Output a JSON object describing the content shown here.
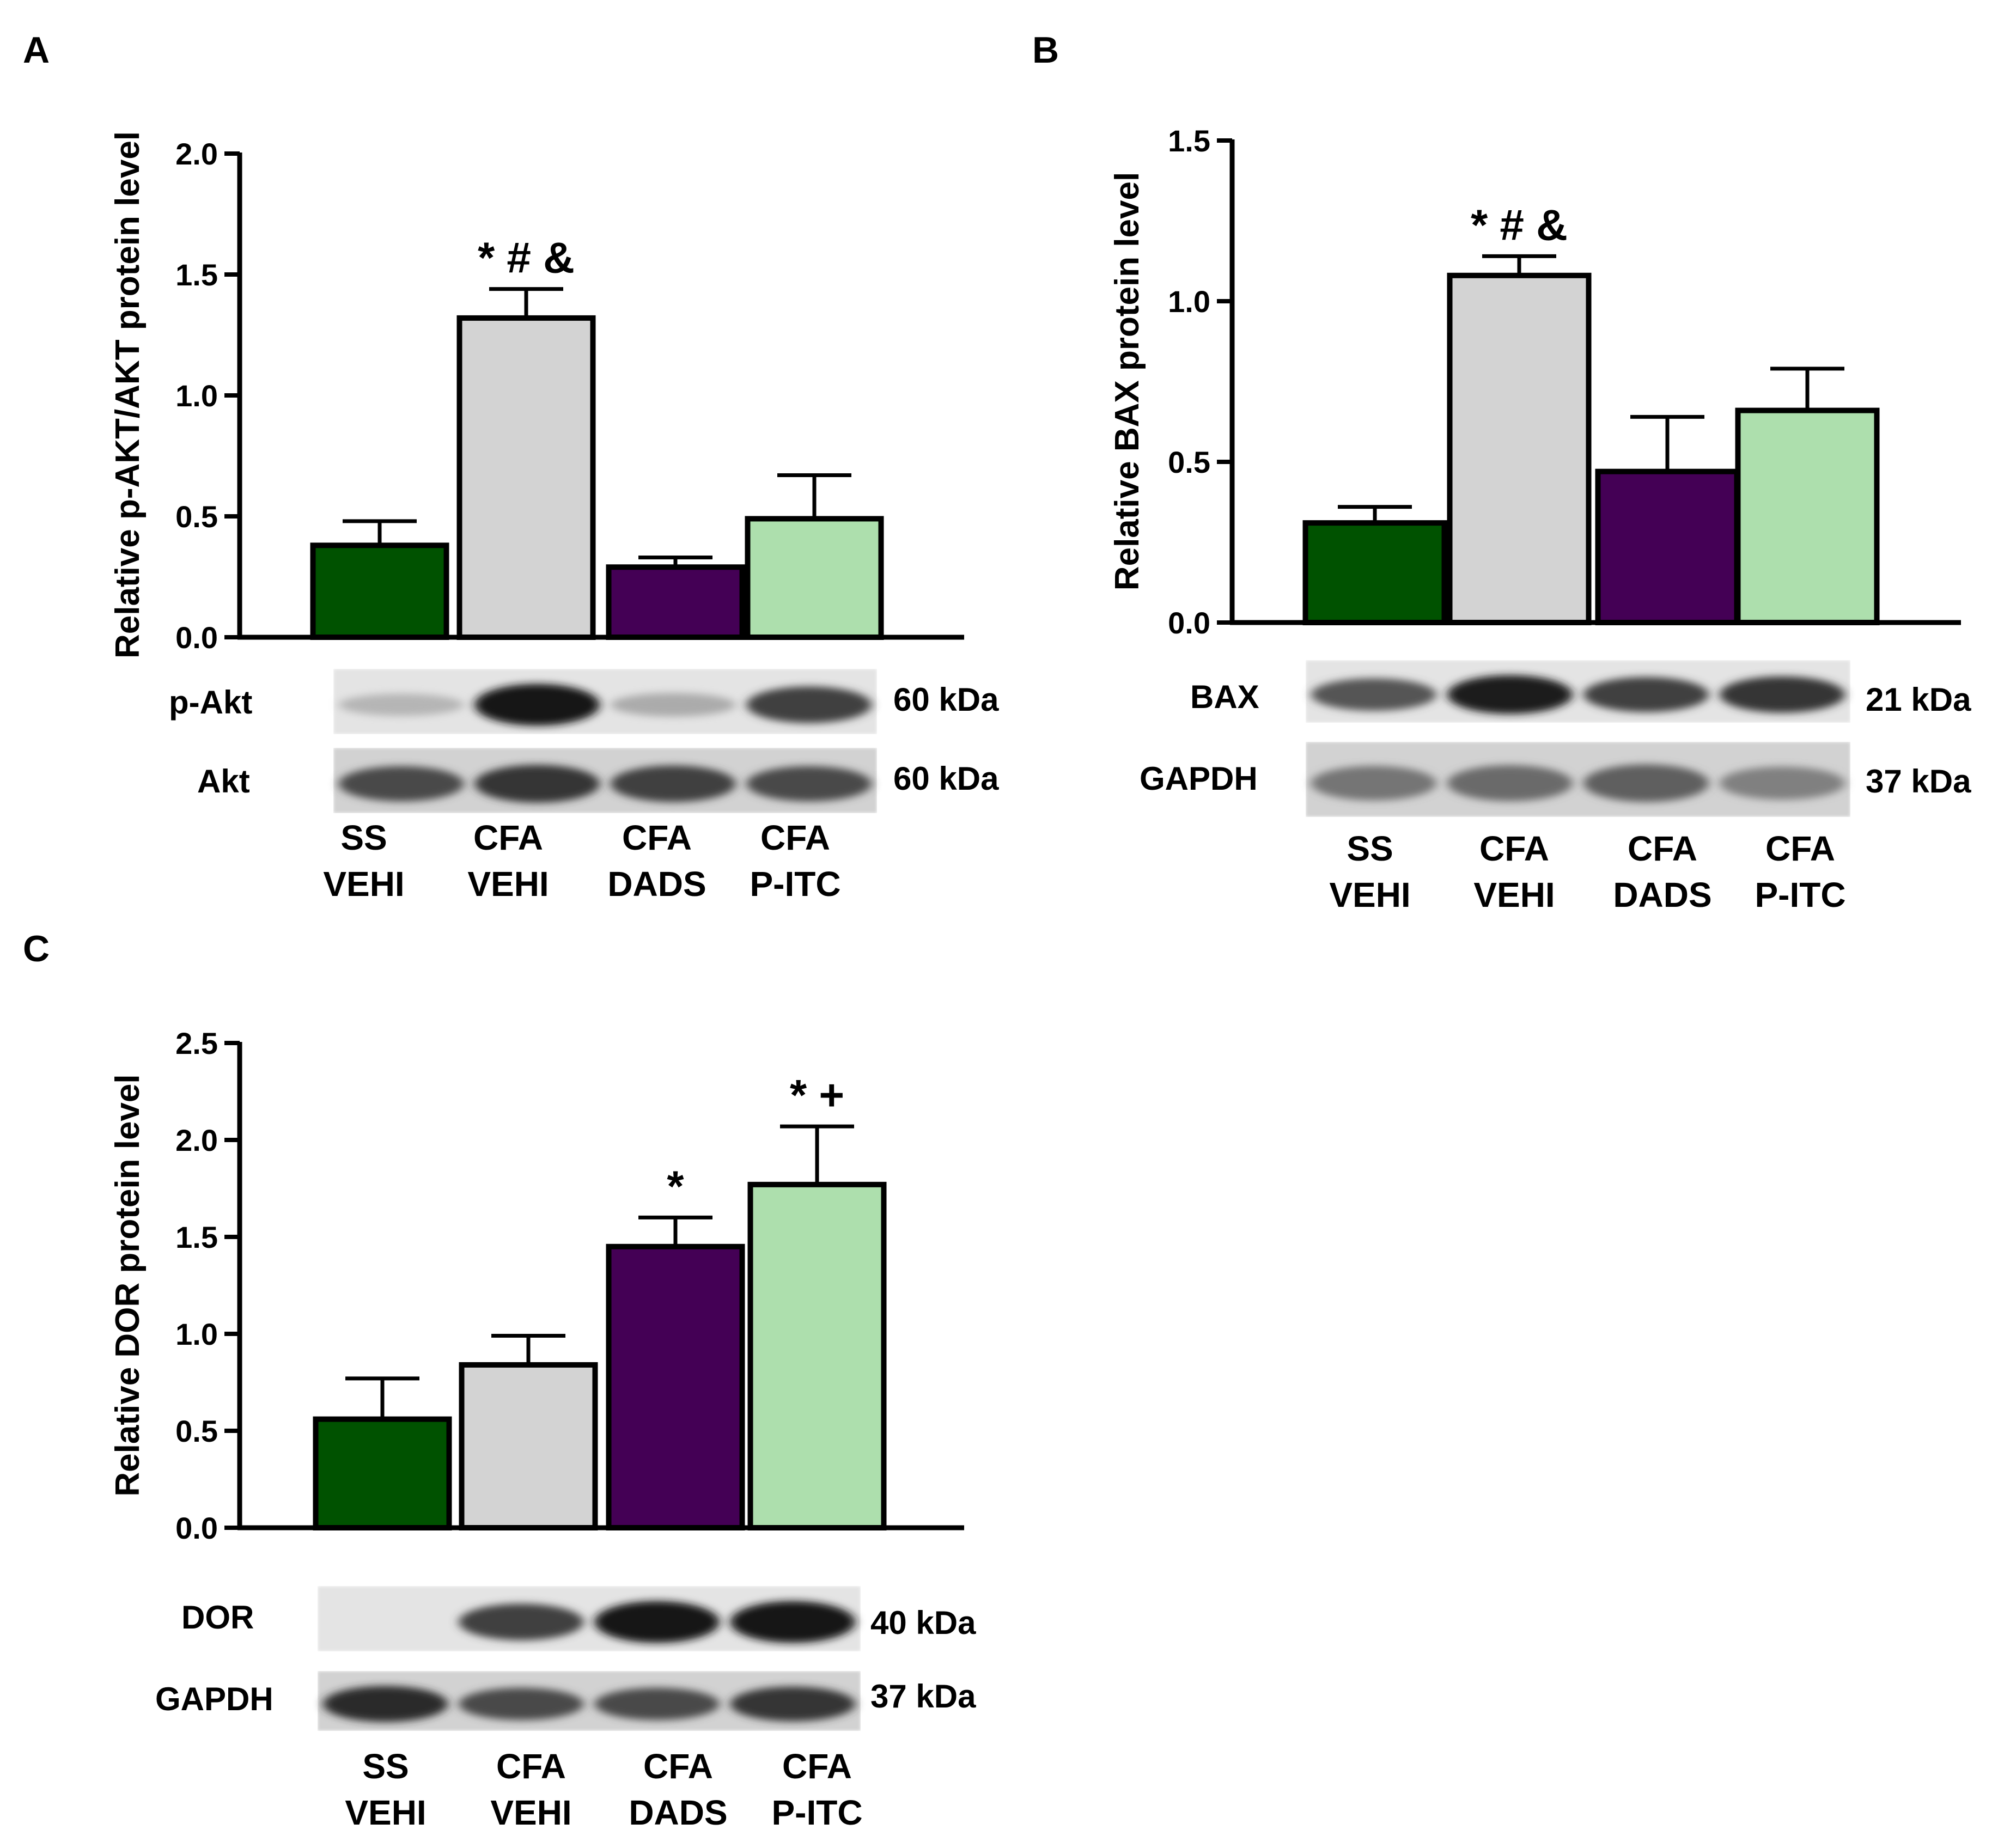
{
  "figure": {
    "panel_letters": [
      "A",
      "B",
      "C"
    ],
    "groups": [
      {
        "line1": "SS",
        "line2": "VEHI"
      },
      {
        "line1": "CFA",
        "line2": "VEHI"
      },
      {
        "line1": "CFA",
        "line2": "DADS"
      },
      {
        "line1": "CFA",
        "line2": "P-ITC"
      }
    ],
    "colors": [
      "#005200",
      "#d3d3d3",
      "#440055",
      "#addfad"
    ]
  },
  "chart_data": [
    {
      "type": "bar",
      "panel": "A",
      "ylabel": "Relative p-AKT/AKT protein level",
      "ylim": [
        0,
        2.0
      ],
      "yticks": [
        "0.0",
        "0.5",
        "1.0",
        "1.5",
        "2.0"
      ],
      "categories": [
        "SS VEHI",
        "CFA VEHI",
        "CFA DADS",
        "CFA P-ITC"
      ],
      "values": [
        0.38,
        1.32,
        0.29,
        0.49
      ],
      "errors": [
        0.1,
        0.12,
        0.04,
        0.18
      ],
      "annotations": [
        "",
        "* # &",
        "",
        ""
      ],
      "blots": [
        {
          "label": "p-Akt",
          "kda": "60 kDa",
          "intensity": [
            0.25,
            1.0,
            0.3,
            0.8
          ]
        },
        {
          "label": "Akt",
          "kda": "60 kDa",
          "intensity": [
            0.75,
            0.85,
            0.8,
            0.75
          ]
        }
      ]
    },
    {
      "type": "bar",
      "panel": "B",
      "ylabel": "Relative BAX protein level",
      "ylim": [
        0,
        1.5
      ],
      "yticks": [
        "0.0",
        "0.5",
        "1.0",
        "1.5"
      ],
      "categories": [
        "SS VEHI",
        "CFA VEHI",
        "CFA DADS",
        "CFA P-ITC"
      ],
      "values": [
        0.31,
        1.08,
        0.47,
        0.66
      ],
      "errors": [
        0.05,
        0.06,
        0.17,
        0.13
      ],
      "annotations": [
        "",
        "* # &",
        "",
        ""
      ],
      "blots": [
        {
          "label": "BAX",
          "kda": "21 kDa",
          "intensity": [
            0.7,
            0.95,
            0.8,
            0.85
          ]
        },
        {
          "label": "GAPDH",
          "kda": "37 kDa",
          "intensity": [
            0.55,
            0.6,
            0.65,
            0.5
          ]
        }
      ]
    },
    {
      "type": "bar",
      "panel": "C",
      "ylabel": "Relative DOR protein level",
      "ylim": [
        0,
        2.5
      ],
      "yticks": [
        "0.0",
        "0.5",
        "1.0",
        "1.5",
        "2.0",
        "2.5"
      ],
      "categories": [
        "SS VEHI",
        "CFA VEHI",
        "CFA DADS",
        "CFA P-ITC"
      ],
      "values": [
        0.56,
        0.84,
        1.45,
        1.77
      ],
      "errors": [
        0.21,
        0.15,
        0.15,
        0.3
      ],
      "annotations": [
        "",
        "",
        "*",
        "* +"
      ],
      "blots": [
        {
          "label": "DOR",
          "kda": "40 kDa",
          "intensity": [
            0.0,
            0.8,
            1.0,
            1.0
          ]
        },
        {
          "label": "GAPDH",
          "kda": "37 kDa",
          "intensity": [
            0.9,
            0.75,
            0.75,
            0.85
          ]
        }
      ]
    }
  ]
}
